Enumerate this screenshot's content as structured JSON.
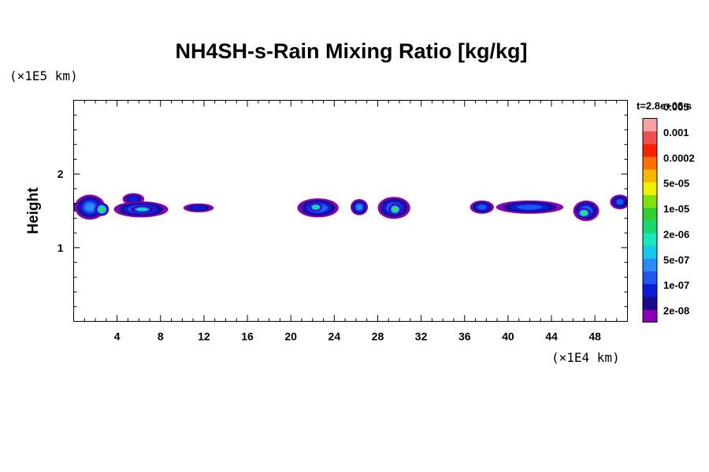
{
  "chart_data": {
    "type": "heatmap",
    "title": "NH4SH-s-Rain Mixing Ratio [kg/kg]",
    "ylabel": "Height",
    "x_unit": "(×1E4 km)",
    "y_unit": "(×1E5 km)",
    "time_label": "t=2.8e+06 s",
    "xlim": [
      0,
      51
    ],
    "ylim": [
      0,
      3
    ],
    "x_ticks": [
      "4",
      "8",
      "12",
      "16",
      "20",
      "24",
      "28",
      "32",
      "36",
      "40",
      "44",
      "48"
    ],
    "y_ticks": [
      "1",
      "2"
    ],
    "colorbar": {
      "labels": [
        "0.005",
        "0.001",
        "0.0002",
        "5e-05",
        "1e-05",
        "2e-06",
        "5e-07",
        "1e-07",
        "2e-08"
      ],
      "colors": [
        "#8a00b8",
        "#1a0b8c",
        "#0a1cd8",
        "#1e56f0",
        "#2a8cf8",
        "#14c8f0",
        "#18e8b8",
        "#18d870",
        "#30d030",
        "#80e010",
        "#f0f000",
        "#f8b800",
        "#ff7000",
        "#ff2000",
        "#f05050",
        "#f8a0a0"
      ]
    },
    "cells": [
      {
        "x": 0.1,
        "y": 1.55,
        "w": 0.8,
        "h": 0.12,
        "level": 2
      },
      {
        "x": 1.5,
        "y": 1.55,
        "w": 2.8,
        "h": 0.34,
        "level": 4
      },
      {
        "x": 2.6,
        "y": 1.52,
        "w": 1.3,
        "h": 0.18,
        "level": 9
      },
      {
        "x": 5.5,
        "y": 1.66,
        "w": 2.0,
        "h": 0.16,
        "level": 2
      },
      {
        "x": 6.2,
        "y": 1.52,
        "w": 5.0,
        "h": 0.22,
        "level": 4
      },
      {
        "x": 6.3,
        "y": 1.52,
        "w": 2.2,
        "h": 0.1,
        "level": 7
      },
      {
        "x": 11.5,
        "y": 1.54,
        "w": 2.8,
        "h": 0.12,
        "level": 2
      },
      {
        "x": 22.5,
        "y": 1.54,
        "w": 3.8,
        "h": 0.26,
        "level": 4
      },
      {
        "x": 22.3,
        "y": 1.55,
        "w": 1.3,
        "h": 0.12,
        "level": 8
      },
      {
        "x": 26.3,
        "y": 1.55,
        "w": 1.6,
        "h": 0.22,
        "level": 4
      },
      {
        "x": 29.5,
        "y": 1.54,
        "w": 3.0,
        "h": 0.3,
        "level": 4
      },
      {
        "x": 29.6,
        "y": 1.52,
        "w": 1.2,
        "h": 0.16,
        "level": 9
      },
      {
        "x": 37.6,
        "y": 1.55,
        "w": 2.2,
        "h": 0.18,
        "level": 3
      },
      {
        "x": 42.0,
        "y": 1.55,
        "w": 6.2,
        "h": 0.18,
        "level": 3
      },
      {
        "x": 47.2,
        "y": 1.5,
        "w": 2.4,
        "h": 0.28,
        "level": 4
      },
      {
        "x": 47.0,
        "y": 1.47,
        "w": 1.3,
        "h": 0.14,
        "level": 9
      },
      {
        "x": 50.3,
        "y": 1.62,
        "w": 1.8,
        "h": 0.2,
        "level": 3
      }
    ]
  }
}
